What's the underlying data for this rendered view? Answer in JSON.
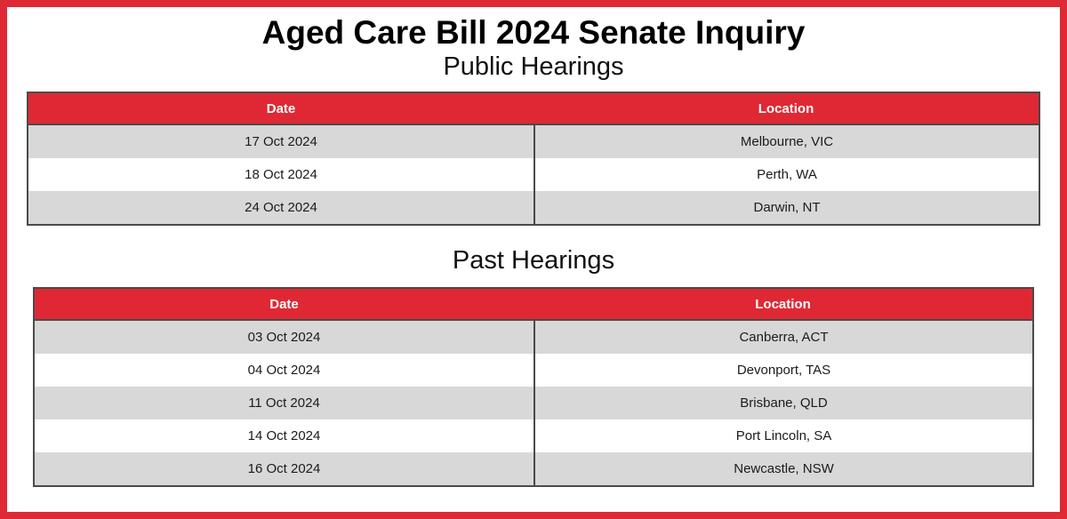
{
  "page_title": "Aged Care Bill 2024 Senate Inquiry",
  "colors": {
    "page_border_red": "#df2a35",
    "table_header_red": "#e02834",
    "header_text": "#ffffff",
    "row_gray": "#d8d8d8",
    "row_white": "#ffffff",
    "table_border_dark": "#4a4a4a",
    "body_text": "#1b1b1b"
  },
  "public_hearings": {
    "heading": "Public Hearings",
    "columns": {
      "date": "Date",
      "location": "Location"
    },
    "rows": [
      {
        "date": "17 Oct 2024",
        "location": "Melbourne, VIC"
      },
      {
        "date": "18 Oct 2024",
        "location": "Perth, WA"
      },
      {
        "date": "24 Oct 2024",
        "location": "Darwin, NT"
      }
    ]
  },
  "past_hearings": {
    "heading": "Past Hearings",
    "columns": {
      "date": "Date",
      "location": "Location"
    },
    "rows": [
      {
        "date": "03 Oct 2024",
        "location": "Canberra, ACT"
      },
      {
        "date": "04 Oct 2024",
        "location": "Devonport, TAS"
      },
      {
        "date": "11 Oct 2024",
        "location": "Brisbane, QLD"
      },
      {
        "date": "14 Oct 2024",
        "location": "Port Lincoln, SA"
      },
      {
        "date": "16 Oct 2024",
        "location": "Newcastle, NSW"
      }
    ]
  }
}
